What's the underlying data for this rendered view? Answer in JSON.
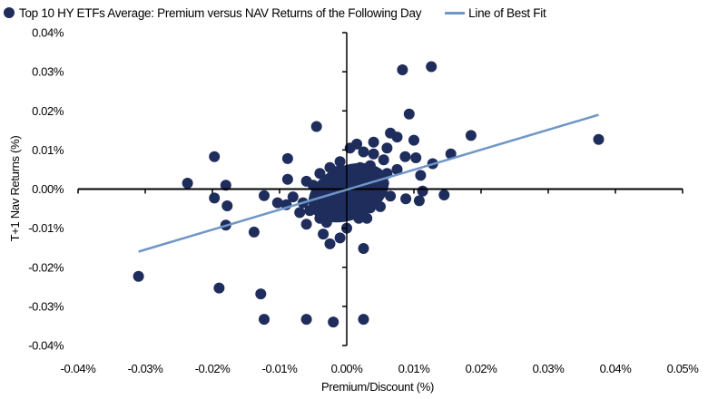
{
  "legend": {
    "series_label": "Top 10 HY ETFs Average: Premium versus NAV Returns of the Following Day",
    "fit_label": "Line of Best Fit"
  },
  "axes": {
    "x_title": "Premium/Discount (%)",
    "y_title": "T+1 Nav Returns (%)",
    "x_ticks": [
      "-0.04%",
      "-0.03%",
      "-0.02%",
      "-0.01%",
      "0.00%",
      "0.01%",
      "0.02%",
      "0.03%",
      "0.04%",
      "0.05%"
    ],
    "y_ticks": [
      "0.04%",
      "0.03%",
      "0.02%",
      "0.01%",
      "0.00%",
      "-0.01%",
      "-0.02%",
      "-0.03%",
      "-0.04%"
    ]
  },
  "colors": {
    "points": "#1f2d5c",
    "fit_line": "#6f96c8",
    "axis": "#000000"
  },
  "chart_data": {
    "type": "scatter",
    "title": "Top 10 HY ETFs Average: Premium versus NAV Returns of the Following Day",
    "xlabel": "Premium/Discount (%)",
    "ylabel": "T+1 Nav Returns (%)",
    "xlim": [
      -0.04,
      0.05
    ],
    "ylim": [
      -0.04,
      0.04
    ],
    "grid": false,
    "legend_position": "top",
    "series": [
      {
        "name": "Top 10 HY ETFs Average: Premium versus NAV Returns of the Following Day",
        "points": [
          [
            -0.031,
            -0.0223
          ],
          [
            -0.0237,
            0.0015
          ],
          [
            -0.0197,
            0.0083
          ],
          [
            -0.0197,
            -0.0023
          ],
          [
            -0.018,
            0.001
          ],
          [
            -0.0178,
            -0.0043
          ],
          [
            -0.018,
            -0.0092
          ],
          [
            -0.019,
            -0.0253
          ],
          [
            -0.0138,
            -0.011
          ],
          [
            -0.0128,
            -0.0268
          ],
          [
            -0.0123,
            -0.0333
          ],
          [
            -0.0123,
            -0.0017
          ],
          [
            -0.0103,
            -0.0035
          ],
          [
            -0.009,
            -0.004
          ],
          [
            -0.0088,
            0.0025
          ],
          [
            -0.0088,
            0.0078
          ],
          [
            -0.006,
            -0.0333
          ],
          [
            -0.0045,
            0.016
          ],
          [
            -0.002,
            -0.034
          ],
          [
            0.0025,
            -0.0333
          ],
          [
            0.0083,
            0.0305
          ],
          [
            0.0126,
            0.0313
          ],
          [
            0.0093,
            0.0192
          ],
          [
            0.0185,
            0.0137
          ],
          [
            0.0375,
            0.0127
          ],
          [
            0.0025,
            -0.0152
          ],
          [
            0.004,
            0.012
          ],
          [
            0.0075,
            0.0133
          ],
          [
            0.01,
            0.0125
          ],
          [
            0.0087,
            0.0083
          ],
          [
            0.0103,
            0.008
          ],
          [
            0.0065,
            0.0143
          ],
          [
            0.0128,
            0.0065
          ],
          [
            0.0155,
            0.009
          ],
          [
            0.011,
            0.0035
          ],
          [
            0.0075,
            0.005
          ],
          [
            0.0113,
            -0.0005
          ],
          [
            0.0145,
            -0.0015
          ],
          [
            0.0108,
            -0.003
          ],
          [
            0.0088,
            -0.0025
          ],
          [
            0.0065,
            -0.0018
          ],
          [
            0.0045,
            -0.002
          ],
          [
            0.0035,
            -0.0048
          ],
          [
            0.003,
            -0.0075
          ],
          [
            0.0018,
            -0.0075
          ],
          [
            0.0,
            -0.01
          ],
          [
            -0.001,
            -0.0125
          ],
          [
            -0.0025,
            -0.014
          ],
          [
            -0.0035,
            -0.0115
          ],
          [
            -0.006,
            -0.009
          ],
          [
            -0.007,
            -0.006
          ],
          [
            -0.008,
            -0.002
          ],
          [
            -0.006,
            0.002
          ],
          [
            -0.004,
            0.004
          ],
          [
            -0.0025,
            0.0055
          ],
          [
            -0.001,
            0.007
          ],
          [
            0.0005,
            0.0105
          ],
          [
            0.0015,
            0.0115
          ],
          [
            0.0025,
            0.0095
          ],
          [
            0.004,
            0.009
          ],
          [
            0.0055,
            0.0075
          ],
          [
            0.006,
            0.004
          ],
          [
            0.0045,
            0.002
          ],
          [
            0.003,
            0.001
          ],
          [
            0.0015,
            0.003
          ],
          [
            0.0,
            0.002
          ],
          [
            -0.0015,
            0.0
          ],
          [
            -0.003,
            -0.001
          ],
          [
            -0.0045,
            -0.003
          ],
          [
            -0.0055,
            -0.0055
          ],
          [
            -0.004,
            -0.0075
          ],
          [
            -0.002,
            -0.006
          ],
          [
            0.0,
            -0.0045
          ],
          [
            0.0015,
            -0.003
          ],
          [
            0.003,
            -0.0015
          ],
          [
            0.0045,
            0.0
          ],
          [
            0.0055,
            0.0015
          ],
          [
            0.001,
            -0.001
          ],
          [
            -0.001,
            -0.0025
          ],
          [
            -0.0025,
            0.0025
          ],
          [
            0.002,
            0.0055
          ],
          [
            0.0035,
            0.006
          ],
          [
            -0.005,
            0.001
          ],
          [
            -0.0065,
            -0.0035
          ],
          [
            0.006,
            0.0105
          ],
          [
            0.005,
            -0.0045
          ],
          [
            0.002,
            -0.0065
          ],
          [
            -0.003,
            -0.0085
          ],
          [
            -0.0015,
            0.0045
          ],
          [
            0.003,
            0.0035
          ]
        ]
      }
    ],
    "fit_line": {
      "name": "Line of Best Fit",
      "from": [
        -0.031,
        -0.016
      ],
      "to": [
        0.0375,
        0.019
      ]
    }
  }
}
